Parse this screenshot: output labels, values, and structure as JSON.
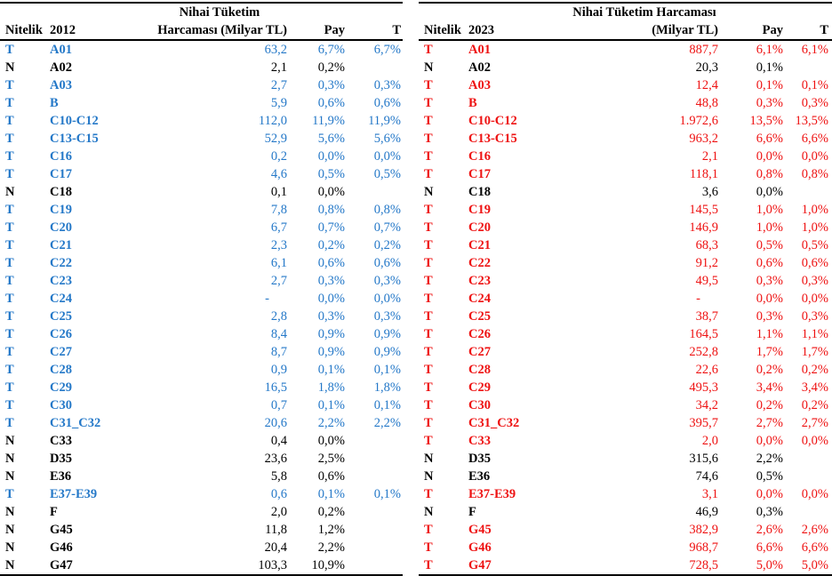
{
  "colors": {
    "left_accent": "#2478C8",
    "right_accent": "#EE1111",
    "normal": "#000000"
  },
  "tables": [
    {
      "id": "left",
      "year": "2012",
      "accent": "#2478C8",
      "header": {
        "nitelik": "Nitelik",
        "value_line1": "Nihai Tüketim",
        "value_line2": "Harcaması (Milyar TL)",
        "pay": "Pay",
        "t": "T"
      },
      "rows": [
        {
          "nitelik": "T",
          "code": "A01",
          "value": "63,2",
          "pay": "6,7%",
          "t": "6,7%"
        },
        {
          "nitelik": "N",
          "code": "A02",
          "value": "2,1",
          "pay": "0,2%",
          "t": ""
        },
        {
          "nitelik": "T",
          "code": "A03",
          "value": "2,7",
          "pay": "0,3%",
          "t": "0,3%"
        },
        {
          "nitelik": "T",
          "code": "B",
          "value": "5,9",
          "pay": "0,6%",
          "t": "0,6%"
        },
        {
          "nitelik": "T",
          "code": "C10-C12",
          "value": "112,0",
          "pay": "11,9%",
          "t": "11,9%"
        },
        {
          "nitelik": "T",
          "code": "C13-C15",
          "value": "52,9",
          "pay": "5,6%",
          "t": "5,6%"
        },
        {
          "nitelik": "T",
          "code": "C16",
          "value": "0,2",
          "pay": "0,0%",
          "t": "0,0%"
        },
        {
          "nitelik": "T",
          "code": "C17",
          "value": "4,6",
          "pay": "0,5%",
          "t": "0,5%"
        },
        {
          "nitelik": "N",
          "code": "C18",
          "value": "0,1",
          "pay": "0,0%",
          "t": ""
        },
        {
          "nitelik": "T",
          "code": "C19",
          "value": "7,8",
          "pay": "0,8%",
          "t": "0,8%"
        },
        {
          "nitelik": "T",
          "code": "C20",
          "value": "6,7",
          "pay": "0,7%",
          "t": "0,7%"
        },
        {
          "nitelik": "T",
          "code": "C21",
          "value": "2,3",
          "pay": "0,2%",
          "t": "0,2%"
        },
        {
          "nitelik": "T",
          "code": "C22",
          "value": "6,1",
          "pay": "0,6%",
          "t": "0,6%"
        },
        {
          "nitelik": "T",
          "code": "C23",
          "value": "2,7",
          "pay": "0,3%",
          "t": "0,3%"
        },
        {
          "nitelik": "T",
          "code": "C24",
          "value": "-",
          "pay": "0,0%",
          "t": "0,0%"
        },
        {
          "nitelik": "T",
          "code": "C25",
          "value": "2,8",
          "pay": "0,3%",
          "t": "0,3%"
        },
        {
          "nitelik": "T",
          "code": "C26",
          "value": "8,4",
          "pay": "0,9%",
          "t": "0,9%"
        },
        {
          "nitelik": "T",
          "code": "C27",
          "value": "8,7",
          "pay": "0,9%",
          "t": "0,9%"
        },
        {
          "nitelik": "T",
          "code": "C28",
          "value": "0,9",
          "pay": "0,1%",
          "t": "0,1%"
        },
        {
          "nitelik": "T",
          "code": "C29",
          "value": "16,5",
          "pay": "1,8%",
          "t": "1,8%"
        },
        {
          "nitelik": "T",
          "code": "C30",
          "value": "0,7",
          "pay": "0,1%",
          "t": "0,1%"
        },
        {
          "nitelik": "T",
          "code": "C31_C32",
          "value": "20,6",
          "pay": "2,2%",
          "t": "2,2%"
        },
        {
          "nitelik": "N",
          "code": "C33",
          "value": "0,4",
          "pay": "0,0%",
          "t": ""
        },
        {
          "nitelik": "N",
          "code": "D35",
          "value": "23,6",
          "pay": "2,5%",
          "t": ""
        },
        {
          "nitelik": "N",
          "code": "E36",
          "value": "5,8",
          "pay": "0,6%",
          "t": ""
        },
        {
          "nitelik": "T",
          "code": "E37-E39",
          "value": "0,6",
          "pay": "0,1%",
          "t": "0,1%"
        },
        {
          "nitelik": "N",
          "code": "F",
          "value": "2,0",
          "pay": "0,2%",
          "t": ""
        },
        {
          "nitelik": "N",
          "code": "G45",
          "value": "11,8",
          "pay": "1,2%",
          "t": ""
        },
        {
          "nitelik": "N",
          "code": "G46",
          "value": "20,4",
          "pay": "2,2%",
          "t": ""
        },
        {
          "nitelik": "N",
          "code": "G47",
          "value": "103,3",
          "pay": "10,9%",
          "t": ""
        }
      ]
    },
    {
      "id": "right",
      "year": "2023",
      "accent": "#EE1111",
      "header": {
        "nitelik": "Nitelik",
        "value_line1": "Nihai Tüketim Harcaması",
        "value_line2": "(Milyar TL)",
        "pay": "Pay",
        "t": "T"
      },
      "rows": [
        {
          "nitelik": "T",
          "code": "A01",
          "value": "887,7",
          "pay": "6,1%",
          "t": "6,1%"
        },
        {
          "nitelik": "N",
          "code": "A02",
          "value": "20,3",
          "pay": "0,1%",
          "t": ""
        },
        {
          "nitelik": "T",
          "code": "A03",
          "value": "12,4",
          "pay": "0,1%",
          "t": "0,1%"
        },
        {
          "nitelik": "T",
          "code": "B",
          "value": "48,8",
          "pay": "0,3%",
          "t": "0,3%"
        },
        {
          "nitelik": "T",
          "code": "C10-C12",
          "value": "1.972,6",
          "pay": "13,5%",
          "t": "13,5%"
        },
        {
          "nitelik": "T",
          "code": "C13-C15",
          "value": "963,2",
          "pay": "6,6%",
          "t": "6,6%"
        },
        {
          "nitelik": "T",
          "code": "C16",
          "value": "2,1",
          "pay": "0,0%",
          "t": "0,0%"
        },
        {
          "nitelik": "T",
          "code": "C17",
          "value": "118,1",
          "pay": "0,8%",
          "t": "0,8%"
        },
        {
          "nitelik": "N",
          "code": "C18",
          "value": "3,6",
          "pay": "0,0%",
          "t": ""
        },
        {
          "nitelik": "T",
          "code": "C19",
          "value": "145,5",
          "pay": "1,0%",
          "t": "1,0%"
        },
        {
          "nitelik": "T",
          "code": "C20",
          "value": "146,9",
          "pay": "1,0%",
          "t": "1,0%"
        },
        {
          "nitelik": "T",
          "code": "C21",
          "value": "68,3",
          "pay": "0,5%",
          "t": "0,5%"
        },
        {
          "nitelik": "T",
          "code": "C22",
          "value": "91,2",
          "pay": "0,6%",
          "t": "0,6%"
        },
        {
          "nitelik": "T",
          "code": "C23",
          "value": "49,5",
          "pay": "0,3%",
          "t": "0,3%"
        },
        {
          "nitelik": "T",
          "code": "C24",
          "value": "-",
          "pay": "0,0%",
          "t": "0,0%"
        },
        {
          "nitelik": "T",
          "code": "C25",
          "value": "38,7",
          "pay": "0,3%",
          "t": "0,3%"
        },
        {
          "nitelik": "T",
          "code": "C26",
          "value": "164,5",
          "pay": "1,1%",
          "t": "1,1%"
        },
        {
          "nitelik": "T",
          "code": "C27",
          "value": "252,8",
          "pay": "1,7%",
          "t": "1,7%"
        },
        {
          "nitelik": "T",
          "code": "C28",
          "value": "22,6",
          "pay": "0,2%",
          "t": "0,2%"
        },
        {
          "nitelik": "T",
          "code": "C29",
          "value": "495,3",
          "pay": "3,4%",
          "t": "3,4%"
        },
        {
          "nitelik": "T",
          "code": "C30",
          "value": "34,2",
          "pay": "0,2%",
          "t": "0,2%"
        },
        {
          "nitelik": "T",
          "code": "C31_C32",
          "value": "395,7",
          "pay": "2,7%",
          "t": "2,7%"
        },
        {
          "nitelik": "T",
          "code": "C33",
          "value": "2,0",
          "pay": "0,0%",
          "t": "0,0%"
        },
        {
          "nitelik": "N",
          "code": "D35",
          "value": "315,6",
          "pay": "2,2%",
          "t": ""
        },
        {
          "nitelik": "N",
          "code": "E36",
          "value": "74,6",
          "pay": "0,5%",
          "t": ""
        },
        {
          "nitelik": "T",
          "code": "E37-E39",
          "value": "3,1",
          "pay": "0,0%",
          "t": "0,0%"
        },
        {
          "nitelik": "N",
          "code": "F",
          "value": "46,9",
          "pay": "0,3%",
          "t": ""
        },
        {
          "nitelik": "T",
          "code": "G45",
          "value": "382,9",
          "pay": "2,6%",
          "t": "2,6%"
        },
        {
          "nitelik": "T",
          "code": "G46",
          "value": "968,7",
          "pay": "6,6%",
          "t": "6,6%"
        },
        {
          "nitelik": "T",
          "code": "G47",
          "value": "728,5",
          "pay": "5,0%",
          "t": "5,0%"
        }
      ]
    }
  ]
}
